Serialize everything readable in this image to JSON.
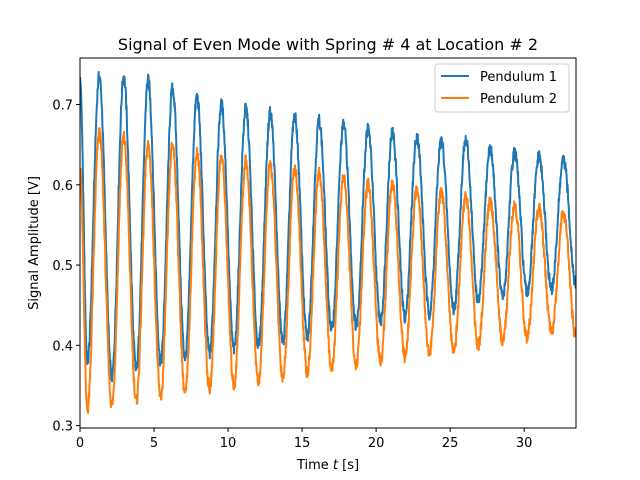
{
  "chart_data": {
    "type": "line",
    "title": "Signal of Even Mode with Spring # 4 at Location # 2",
    "xlabel_prefix": "Time ",
    "xlabel_var": "t",
    "xlabel_suffix": " [s]",
    "ylabel": "Signal Amplitude [V]",
    "xlim": [
      0,
      33.5
    ],
    "ylim": [
      0.297,
      0.758
    ],
    "xticks": [
      0,
      5,
      10,
      15,
      20,
      25,
      30
    ],
    "yticks": [
      0.3,
      0.4,
      0.5,
      0.6,
      0.7
    ],
    "ytick_labels": [
      "0.3",
      "0.4",
      "0.5",
      "0.6",
      "0.7"
    ],
    "legend_position": "top-right",
    "series": [
      {
        "name": "Pendulum 1",
        "color": "#1f77b4",
        "period": 1.65,
        "phase_peak": 1.3,
        "peaks": [
          [
            1.3,
            0.735
          ],
          [
            2.95,
            0.735
          ],
          [
            4.6,
            0.73
          ],
          [
            6.25,
            0.72
          ],
          [
            7.9,
            0.71
          ],
          [
            9.55,
            0.7
          ],
          [
            11.2,
            0.695
          ],
          [
            12.85,
            0.69
          ],
          [
            14.5,
            0.685
          ],
          [
            16.15,
            0.68
          ],
          [
            17.8,
            0.675
          ],
          [
            19.45,
            0.67
          ],
          [
            21.1,
            0.665
          ],
          [
            22.75,
            0.66
          ],
          [
            24.4,
            0.655
          ],
          [
            26.05,
            0.655
          ],
          [
            27.7,
            0.645
          ],
          [
            29.35,
            0.64
          ],
          [
            31.0,
            0.635
          ],
          [
            32.65,
            0.63
          ]
        ],
        "troughs": [
          [
            0.5,
            0.38
          ],
          [
            2.15,
            0.36
          ],
          [
            3.8,
            0.37
          ],
          [
            5.45,
            0.38
          ],
          [
            7.1,
            0.385
          ],
          [
            8.75,
            0.39
          ],
          [
            10.4,
            0.395
          ],
          [
            12.05,
            0.4
          ],
          [
            13.7,
            0.405
          ],
          [
            15.35,
            0.41
          ],
          [
            17.0,
            0.42
          ],
          [
            18.65,
            0.425
          ],
          [
            20.3,
            0.43
          ],
          [
            21.95,
            0.435
          ],
          [
            23.6,
            0.44
          ],
          [
            25.25,
            0.445
          ],
          [
            26.9,
            0.455
          ],
          [
            28.55,
            0.46
          ],
          [
            30.2,
            0.465
          ],
          [
            31.85,
            0.47
          ],
          [
            33.5,
            0.475
          ]
        ],
        "start": 0.73
      },
      {
        "name": "Pendulum 2",
        "color": "#ff7f0e",
        "peaks": [
          [
            1.3,
            0.665
          ],
          [
            2.95,
            0.66
          ],
          [
            4.6,
            0.65
          ],
          [
            6.25,
            0.65
          ],
          [
            7.9,
            0.64
          ],
          [
            9.55,
            0.635
          ],
          [
            11.2,
            0.63
          ],
          [
            12.85,
            0.625
          ],
          [
            14.5,
            0.62
          ],
          [
            16.15,
            0.615
          ],
          [
            17.8,
            0.61
          ],
          [
            19.45,
            0.6
          ],
          [
            21.1,
            0.6
          ],
          [
            22.75,
            0.595
          ],
          [
            24.4,
            0.59
          ],
          [
            26.05,
            0.585
          ],
          [
            27.7,
            0.58
          ],
          [
            29.35,
            0.575
          ],
          [
            31.0,
            0.57
          ],
          [
            32.65,
            0.565
          ]
        ],
        "troughs": [
          [
            0.5,
            0.32
          ],
          [
            2.15,
            0.325
          ],
          [
            3.8,
            0.33
          ],
          [
            5.45,
            0.335
          ],
          [
            7.1,
            0.34
          ],
          [
            8.75,
            0.345
          ],
          [
            10.4,
            0.35
          ],
          [
            12.05,
            0.355
          ],
          [
            13.7,
            0.36
          ],
          [
            15.35,
            0.365
          ],
          [
            17.0,
            0.37
          ],
          [
            18.65,
            0.375
          ],
          [
            20.3,
            0.38
          ],
          [
            21.95,
            0.385
          ],
          [
            23.6,
            0.39
          ],
          [
            25.25,
            0.395
          ],
          [
            26.9,
            0.4
          ],
          [
            28.55,
            0.405
          ],
          [
            30.2,
            0.41
          ],
          [
            31.85,
            0.415
          ],
          [
            33.5,
            0.41
          ]
        ],
        "start": 0.62
      }
    ]
  }
}
